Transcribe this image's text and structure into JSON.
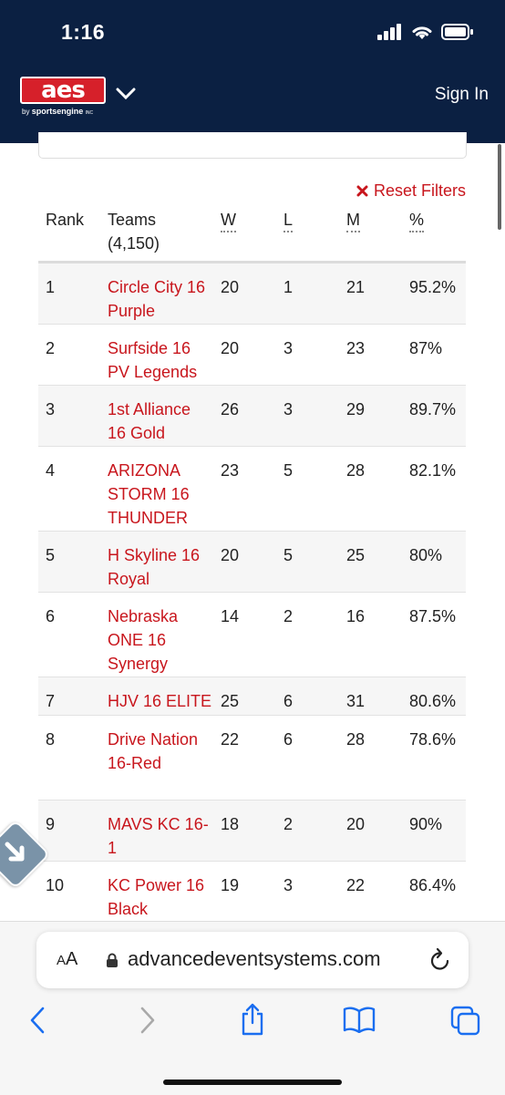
{
  "status": {
    "time": "1:16"
  },
  "header": {
    "logo_text": "aes",
    "logo_sub_by": "by",
    "logo_sub_brand": "sportsengine",
    "logo_sub_inc": "INC",
    "sign_in": "Sign In"
  },
  "filters": {
    "reset_label": "Reset Filters"
  },
  "table": {
    "headers": {
      "rank": "Rank",
      "teams": "Teams",
      "teams_count": "(4,150)",
      "w": "W",
      "l": "L",
      "m": "M",
      "pct": "%"
    },
    "rows": [
      {
        "rank": "1",
        "team": "Circle City 16 Purple",
        "w": "20",
        "l": "1",
        "m": "21",
        "pct": "95.2%"
      },
      {
        "rank": "2",
        "team": "Surfside 16 PV Legends",
        "w": "20",
        "l": "3",
        "m": "23",
        "pct": "87%"
      },
      {
        "rank": "3",
        "team": "1st Alliance 16 Gold",
        "w": "26",
        "l": "3",
        "m": "29",
        "pct": "89.7%"
      },
      {
        "rank": "4",
        "team": "ARIZONA STORM 16 THUNDER",
        "w": "23",
        "l": "5",
        "m": "28",
        "pct": "82.1%"
      },
      {
        "rank": "5",
        "team": "H Skyline 16 Royal",
        "w": "20",
        "l": "5",
        "m": "25",
        "pct": "80%"
      },
      {
        "rank": "6",
        "team": "Nebraska ONE 16 Synergy",
        "w": "14",
        "l": "2",
        "m": "16",
        "pct": "87.5%"
      },
      {
        "rank": "7",
        "team": "HJV 16 ELITE",
        "w": "25",
        "l": "6",
        "m": "31",
        "pct": "80.6%"
      },
      {
        "rank": "8",
        "team": "Drive Nation 16-Red",
        "w": "22",
        "l": "6",
        "m": "28",
        "pct": "78.6%"
      },
      {
        "rank": "9",
        "team": "MAVS KC 16-1",
        "w": "18",
        "l": "2",
        "m": "20",
        "pct": "90%"
      },
      {
        "rank": "10",
        "team": "KC Power 16 Black",
        "w": "19",
        "l": "3",
        "m": "22",
        "pct": "86.4%"
      }
    ]
  },
  "browser": {
    "aa_label_big": "A",
    "aa_label_small": "A",
    "url": "advancedeventsystems.com"
  },
  "colors": {
    "navy": "#0b2042",
    "accent_red": "#c8161d"
  },
  "icons": [
    "signal-icon",
    "wifi-icon",
    "battery-icon",
    "chevron-down-icon",
    "close-icon",
    "lock-icon",
    "reload-icon",
    "back-icon",
    "forward-icon",
    "share-icon",
    "bookmarks-icon",
    "tabs-icon",
    "scroll-top-icon"
  ]
}
